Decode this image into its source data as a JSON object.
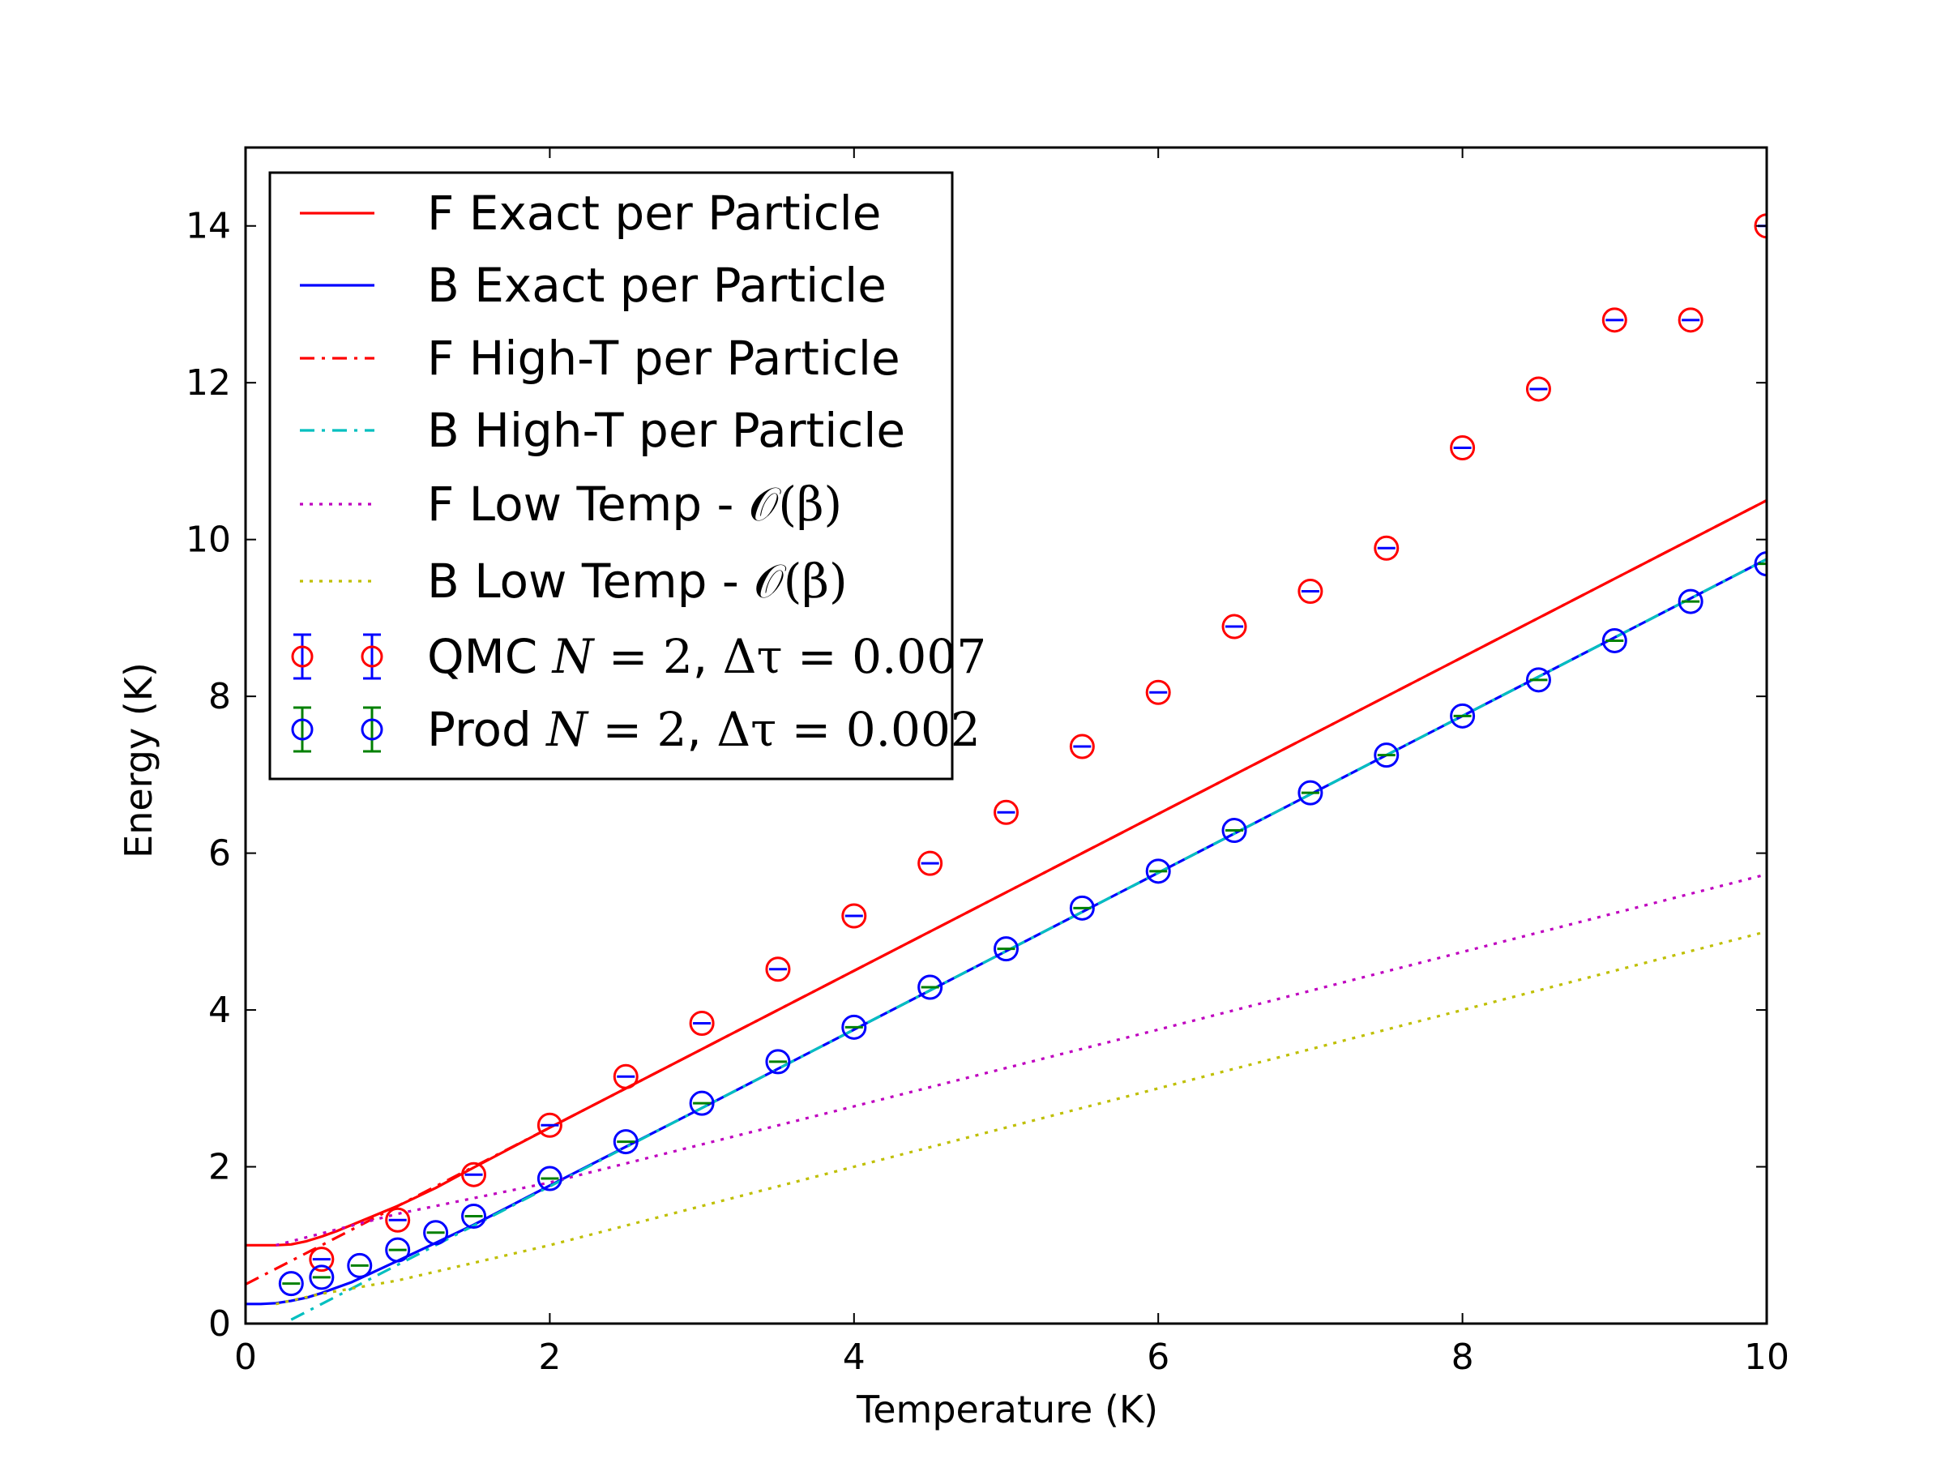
{
  "chart_data": {
    "type": "line",
    "xlabel": "Temperature (K)",
    "ylabel": "Energy (K)",
    "xlim": [
      0,
      10
    ],
    "ylim": [
      0,
      15
    ],
    "xticks": [
      0,
      2,
      4,
      6,
      8,
      10
    ],
    "yticks": [
      0,
      2,
      4,
      6,
      8,
      10,
      12,
      14
    ],
    "grid": false,
    "legend_position": "top-left",
    "series": [
      {
        "name": "F Exact per Particle",
        "kind": "line",
        "style": "solid",
        "color": "#ff0000",
        "x": [
          0,
          0.1,
          0.2,
          0.3,
          0.4,
          0.5,
          0.6,
          0.7,
          0.8,
          0.9,
          1.0,
          1.25,
          1.5,
          2,
          3,
          4,
          5,
          6,
          7,
          8,
          9,
          10
        ],
        "y": [
          1.0,
          1.0,
          1.0,
          1.01,
          1.05,
          1.11,
          1.18,
          1.26,
          1.34,
          1.42,
          1.5,
          1.73,
          1.99,
          2.5,
          3.5,
          4.5,
          5.5,
          6.5,
          7.5,
          8.5,
          9.5,
          10.5
        ]
      },
      {
        "name": "B Exact per Particle",
        "kind": "line",
        "style": "solid",
        "color": "#0000ff",
        "x": [
          0,
          0.1,
          0.2,
          0.3,
          0.4,
          0.5,
          0.6,
          0.7,
          0.8,
          0.9,
          1.0,
          1.25,
          1.5,
          1.75,
          2,
          3,
          4,
          5,
          6,
          7,
          8,
          9,
          10
        ],
        "y": [
          0.25,
          0.25,
          0.26,
          0.29,
          0.33,
          0.39,
          0.46,
          0.53,
          0.62,
          0.71,
          0.8,
          1.03,
          1.26,
          1.51,
          1.76,
          2.75,
          3.75,
          4.75,
          5.75,
          6.75,
          7.75,
          8.75,
          9.75
        ]
      },
      {
        "name": "F High-T per Particle",
        "kind": "line",
        "style": "dashdot",
        "color": "#ff0000",
        "x": [
          0,
          0.3,
          0.5,
          1.0,
          1.5,
          2,
          3,
          4,
          5,
          6,
          7,
          8,
          9,
          10
        ],
        "y": [
          0.5,
          0.8,
          1.0,
          1.5,
          2.0,
          2.5,
          3.5,
          4.5,
          5.5,
          6.5,
          7.5,
          8.5,
          9.5,
          10.5
        ]
      },
      {
        "name": "B High-T per Particle",
        "kind": "line",
        "style": "dashdot",
        "color": "#00bfbf",
        "x": [
          0.3,
          0.5,
          1.0,
          1.5,
          2,
          3,
          4,
          5,
          6,
          7,
          8,
          9,
          10
        ],
        "y": [
          0.05,
          0.25,
          0.75,
          1.25,
          1.75,
          2.75,
          3.75,
          4.75,
          5.75,
          6.75,
          7.75,
          8.75,
          9.75
        ]
      },
      {
        "name": "F Low Temp - 𝒪(β)",
        "kind": "line",
        "style": "dotted",
        "color": "#bf00bf",
        "x": [
          0.2,
          0.4,
          0.6,
          0.8,
          1.0,
          1.5,
          2,
          4,
          6,
          8,
          10
        ],
        "y": [
          1.0,
          1.1,
          1.2,
          1.3,
          1.4,
          1.6,
          1.8,
          2.77,
          3.75,
          4.74,
          5.73
        ]
      },
      {
        "name": "B Low Temp - 𝒪(β)",
        "kind": "line",
        "style": "dotted",
        "color": "#bfbf00",
        "x": [
          0.2,
          0.5,
          1.0,
          2,
          4,
          6,
          8,
          10
        ],
        "y": [
          0.25,
          0.38,
          0.55,
          1.0,
          2.0,
          3.0,
          4.0,
          5.0
        ]
      },
      {
        "name": "QMC N=2, Δτ=0.007",
        "kind": "errorbar",
        "color": "#ff0000",
        "errorbar_color": "#0000ff",
        "x": [
          0.5,
          1.0,
          1.5,
          2.0,
          2.5,
          3.0,
          3.5,
          4.0,
          4.5,
          5.0,
          5.5,
          6.0,
          6.5,
          7.0,
          7.5,
          8.0,
          8.5,
          9.0,
          9.5,
          10.0
        ],
        "y": [
          0.82,
          1.32,
          1.9,
          2.53,
          3.15,
          3.83,
          4.52,
          5.2,
          5.87,
          6.52,
          7.36,
          8.05,
          8.89,
          9.34,
          9.89,
          11.17,
          11.92,
          12.8,
          12.8,
          14.0
        ]
      },
      {
        "name": "Prod N=2, Δτ=0.002",
        "kind": "errorbar",
        "color": "#0000ff",
        "errorbar_color": "#008000",
        "x": [
          0.3,
          0.5,
          0.75,
          1.0,
          1.25,
          1.5,
          2.0,
          2.5,
          3.0,
          3.5,
          4.0,
          4.5,
          5.0,
          5.5,
          6.0,
          6.5,
          7.0,
          7.5,
          8.0,
          8.5,
          9.0,
          9.5,
          10.0
        ],
        "y": [
          0.51,
          0.59,
          0.74,
          0.94,
          1.16,
          1.37,
          1.85,
          2.32,
          2.81,
          3.34,
          3.78,
          4.29,
          4.78,
          5.3,
          5.77,
          6.29,
          6.77,
          7.25,
          7.75,
          8.21,
          8.71,
          9.21,
          9.69
        ]
      }
    ],
    "legend": [
      {
        "text": "F Exact per Particle"
      },
      {
        "text": "B Exact per Particle"
      },
      {
        "text": "F High-T per Particle"
      },
      {
        "text": "B High-T per Particle"
      },
      {
        "prefix": "F Low Temp - ",
        "math": "𝒪(β)"
      },
      {
        "prefix": "B Low Temp - ",
        "math": "𝒪(β)"
      },
      {
        "prefix": "QMC ",
        "math1": "N",
        "eq1": " = 2",
        "sep": ", ",
        "math2": "Δτ",
        "eq2": " = 0.007"
      },
      {
        "prefix": "Prod ",
        "math1": "N",
        "eq1": " = 2",
        "sep": ", ",
        "math2": "Δτ",
        "eq2": " = 0.002"
      }
    ]
  }
}
